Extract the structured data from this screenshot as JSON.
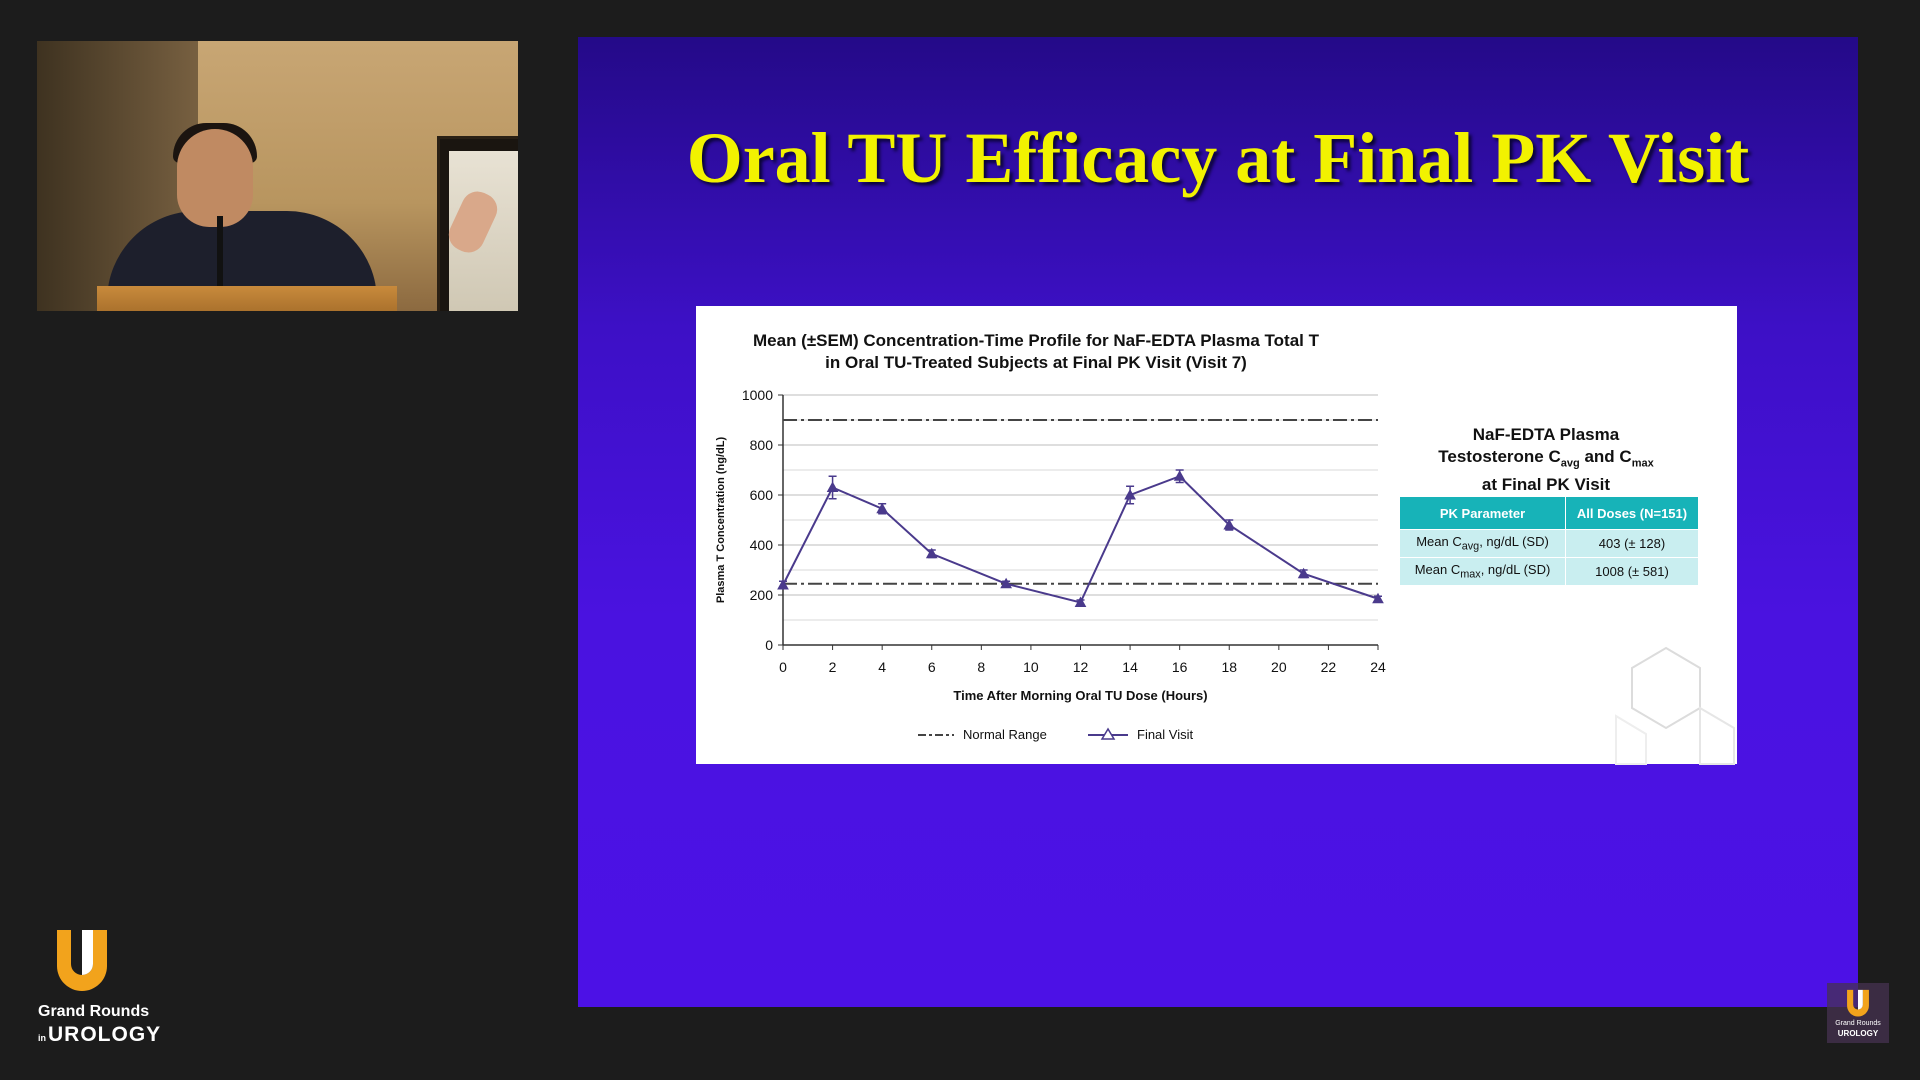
{
  "slide": {
    "title": "Oral TU Efficacy at Final PK Visit"
  },
  "chart": {
    "title_line1": "Mean (±SEM) Concentration-Time Profile for NaF-EDTA Plasma Total T",
    "title_line2": "in Oral TU-Treated Subjects at Final PK Visit (Visit 7)",
    "xlabel": "Time After Morning Oral TU Dose (Hours)",
    "ylabel": "Plasma T Concentration (ng/dL)",
    "legend_normal": "Normal Range",
    "legend_final": "Final Visit"
  },
  "chart_data": {
    "type": "line",
    "title": "Mean (±SEM) Concentration-Time Profile for NaF-EDTA Plasma Total T in Oral TU-Treated Subjects at Final PK Visit (Visit 7)",
    "xlabel": "Time After Morning Oral TU Dose (Hours)",
    "ylabel": "Plasma T Concentration (ng/dL)",
    "xlim": [
      0,
      24
    ],
    "ylim": [
      0,
      1000
    ],
    "x_ticks": [
      0,
      2,
      4,
      6,
      8,
      10,
      12,
      14,
      16,
      18,
      20,
      22,
      24
    ],
    "y_ticks": [
      0,
      200,
      400,
      600,
      800,
      1000
    ],
    "grid": true,
    "series": [
      {
        "name": "Final Visit",
        "marker": "triangle",
        "color": "#4a3a8c",
        "x": [
          0,
          2,
          4,
          6,
          9,
          12,
          14,
          16,
          18,
          21,
          24
        ],
        "y": [
          240,
          630,
          545,
          365,
          245,
          170,
          600,
          675,
          480,
          285,
          185
        ],
        "err": [
          15,
          45,
          20,
          15,
          10,
          10,
          35,
          25,
          20,
          15,
          10
        ]
      },
      {
        "name": "Normal Range",
        "style": "dash-dot",
        "color": "#444444",
        "lines": [
          900,
          245
        ]
      }
    ],
    "legend": "bottom"
  },
  "side_panel": {
    "title_line1": "NaF-EDTA Plasma",
    "title_line2_pre": "Testosterone C",
    "title_line2_sub1": "avg",
    "title_line2_mid": " and C",
    "title_line2_sub2": "max",
    "title_line3": "at Final PK Visit",
    "table": {
      "headers": [
        "PK Parameter",
        "All Doses (N=151)"
      ],
      "rows": [
        {
          "param_pre": "Mean C",
          "param_sub": "avg",
          "param_post": ", ng/dL (SD)",
          "value": "403 (± 128)"
        },
        {
          "param_pre": "Mean C",
          "param_sub": "max",
          "param_post": ", ng/dL (SD)",
          "value": "1008 (± 581)"
        }
      ]
    }
  },
  "branding": {
    "line1": "Grand Rounds",
    "line2_small": "in",
    "line2": "UROLOGY",
    "accent_color": "#f2a31c"
  }
}
